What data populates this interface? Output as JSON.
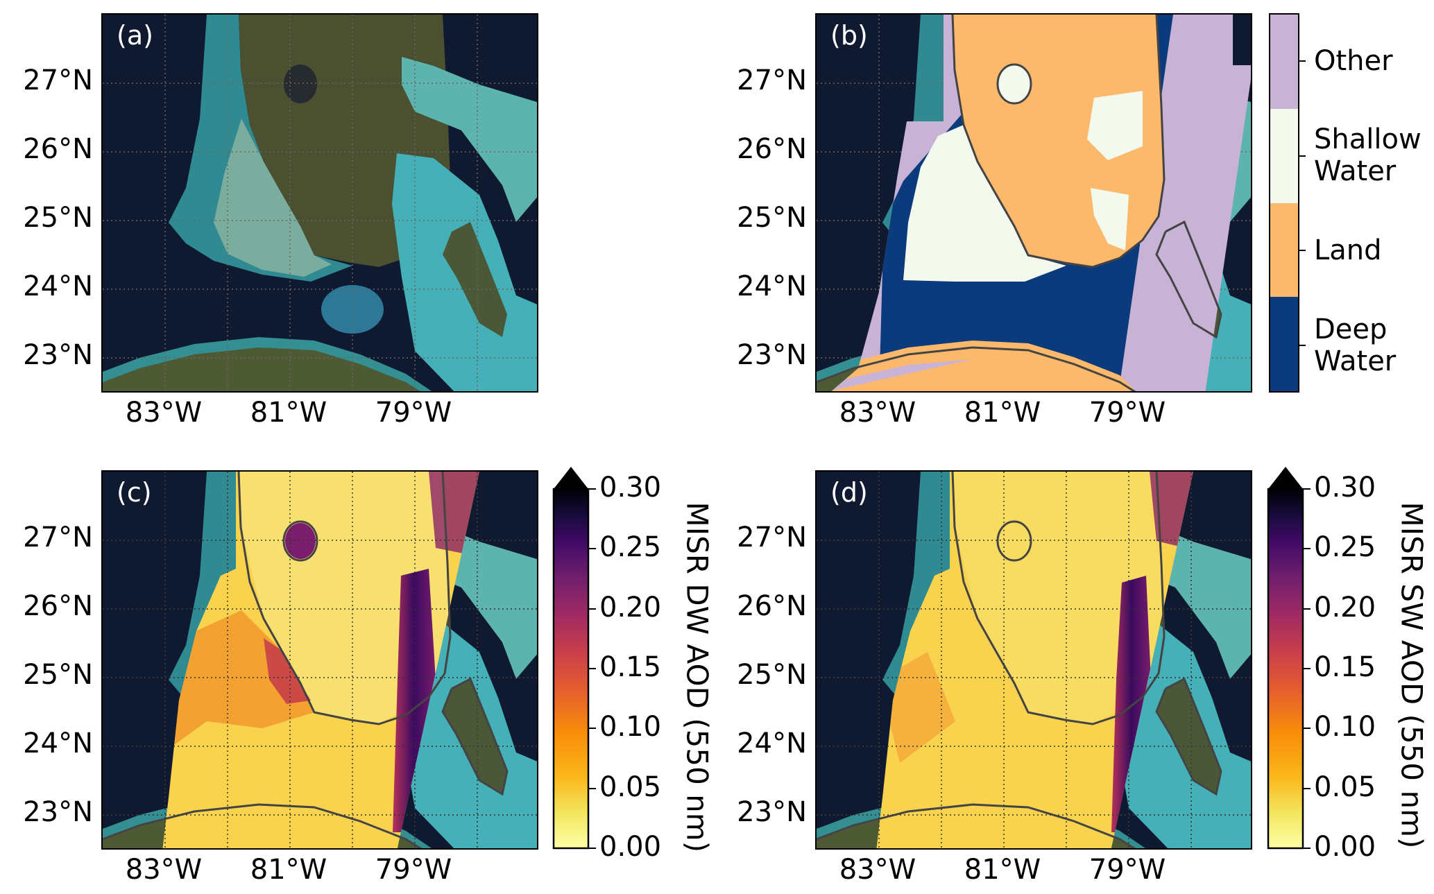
{
  "panels": [
    {
      "id": "a",
      "label": "(a)"
    },
    {
      "id": "b",
      "label": "(b)"
    },
    {
      "id": "c",
      "label": "(c)"
    },
    {
      "id": "d",
      "label": "(d)"
    }
  ],
  "axes": {
    "lat_ticks": [
      "27°N",
      "26°N",
      "25°N",
      "24°N",
      "23°N"
    ],
    "lon_ticks": [
      "83°W",
      "81°W",
      "79°W"
    ]
  },
  "classification_legend": {
    "categories": [
      {
        "label": "Other",
        "color": "#c8b3d7"
      },
      {
        "label": "Shallow Water",
        "color": "#f4f9ee"
      },
      {
        "label": "Land",
        "color": "#fdb96b"
      },
      {
        "label": "Deep Water",
        "color": "#0b3b7c"
      }
    ]
  },
  "colorbars": [
    {
      "panel": "c",
      "title": "MISR DW AOD (550 nm)",
      "range": [
        0.0,
        0.3
      ],
      "extend": "max",
      "colormap": "inferno_r",
      "ticks": [
        "0.30",
        "0.25",
        "0.20",
        "0.15",
        "0.10",
        "0.05",
        "0.00"
      ]
    },
    {
      "panel": "d",
      "title": "MISR SW AOD (550 nm)",
      "range": [
        0.0,
        0.3
      ],
      "extend": "max",
      "colormap": "inferno_r",
      "ticks": [
        "0.30",
        "0.25",
        "0.20",
        "0.15",
        "0.10",
        "0.05",
        "0.00"
      ]
    }
  ],
  "colors": {
    "coastline": "#444444",
    "ocean": "#0f1a30"
  }
}
